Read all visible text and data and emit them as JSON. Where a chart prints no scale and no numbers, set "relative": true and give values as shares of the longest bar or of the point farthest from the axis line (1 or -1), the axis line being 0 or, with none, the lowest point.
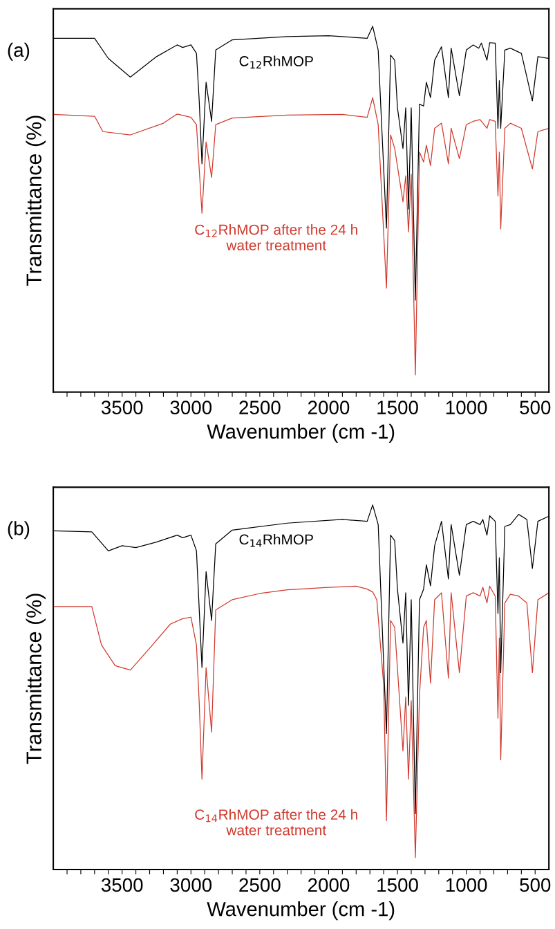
{
  "chart_data": [
    {
      "type": "line",
      "title": "(a)",
      "xlabel": "Wavenumber (cm -1)",
      "ylabel": "Transmittance (%)",
      "relative": true,
      "tick_labels": "x",
      "grid": false,
      "marker": "none",
      "line_style": "solid",
      "xlim": [
        4000,
        400
      ],
      "xticks": [
        {
          "value": 3900,
          "label": null
        },
        {
          "value": 3800,
          "label": null
        },
        {
          "value": 3700,
          "label": null
        },
        {
          "value": 3600,
          "label": null
        },
        3500,
        {
          "value": 3400,
          "label": null
        },
        {
          "value": 3300,
          "label": null
        },
        {
          "value": 3200,
          "label": null
        },
        {
          "value": 3100,
          "label": null
        },
        3000,
        {
          "value": 2900,
          "label": null
        },
        {
          "value": 2800,
          "label": null
        },
        {
          "value": 2700,
          "label": null
        },
        {
          "value": 2600,
          "label": null
        },
        2500,
        {
          "value": 2400,
          "label": null
        },
        {
          "value": 2300,
          "label": null
        },
        {
          "value": 2200,
          "label": null
        },
        {
          "value": 2100,
          "label": null
        },
        2000,
        {
          "value": 1900,
          "label": null
        },
        {
          "value": 1800,
          "label": null
        },
        {
          "value": 1700,
          "label": null
        },
        {
          "value": 1600,
          "label": null
        },
        1500,
        {
          "value": 1400,
          "label": null
        },
        {
          "value": 1300,
          "label": null
        },
        {
          "value": 1200,
          "label": null
        },
        {
          "value": 1100,
          "label": null
        },
        1000,
        {
          "value": 900,
          "label": null
        },
        {
          "value": 800,
          "label": null
        },
        {
          "value": 700,
          "label": null
        },
        {
          "value": 600,
          "label": null
        },
        500
      ],
      "series": [
        {
          "name": "C$_{12}$RhMOP",
          "color": "#000000",
          "x": [
            4000,
            3700,
            3600,
            3440,
            3250,
            3100,
            3060,
            3000,
            2960,
            2940,
            2920,
            2890,
            2850,
            2820,
            2700,
            2300,
            2000,
            1720,
            1680,
            1640,
            1580,
            1550,
            1520,
            1500,
            1460,
            1440,
            1420,
            1400,
            1370,
            1340,
            1310,
            1290,
            1260,
            1230,
            1180,
            1130,
            1110,
            1050,
            1000,
            950,
            910,
            890,
            850,
            830,
            790,
            770,
            760,
            750,
            720,
            680,
            600,
            520,
            480,
            400
          ],
          "values": [
            0.967,
            0.967,
            0.912,
            0.861,
            0.917,
            0.949,
            0.942,
            0.949,
            0.926,
            0.796,
            0.624,
            0.847,
            0.74,
            0.935,
            0.963,
            0.972,
            0.974,
            0.967,
            1.0,
            0.935,
            0.448,
            0.921,
            0.907,
            0.777,
            0.666,
            0.777,
            0.5,
            0.777,
            0.251,
            0.787,
            0.782,
            0.847,
            0.805,
            0.907,
            0.944,
            0.805,
            0.94,
            0.81,
            0.935,
            0.949,
            0.94,
            0.954,
            0.907,
            0.955,
            0.954,
            0.721,
            0.851,
            0.721,
            0.935,
            0.94,
            0.926,
            0.796,
            0.917,
            0.912
          ]
        },
        {
          "name": "C$_{12}$RhMOP after the 24 h\nwater treatment",
          "color": "#d03a2e",
          "x": [
            4000,
            3700,
            3640,
            3440,
            3200,
            3100,
            3000,
            2960,
            2920,
            2890,
            2850,
            2820,
            2700,
            2300,
            1900,
            1720,
            1680,
            1640,
            1580,
            1550,
            1520,
            1460,
            1440,
            1420,
            1400,
            1370,
            1340,
            1310,
            1290,
            1260,
            1230,
            1180,
            1130,
            1110,
            1050,
            1000,
            950,
            900,
            850,
            830,
            790,
            770,
            760,
            750,
            720,
            680,
            600,
            520,
            480,
            400
          ],
          "values": [
            0.759,
            0.754,
            0.712,
            0.703,
            0.735,
            0.76,
            0.751,
            0.731,
            0.489,
            0.684,
            0.587,
            0.731,
            0.749,
            0.757,
            0.759,
            0.751,
            0.805,
            0.731,
            0.284,
            0.703,
            0.666,
            0.52,
            0.591,
            0.438,
            0.596,
            0.047,
            0.656,
            0.629,
            0.675,
            0.619,
            0.721,
            0.735,
            0.624,
            0.721,
            0.638,
            0.731,
            0.74,
            0.745,
            0.721,
            0.745,
            0.74,
            0.536,
            0.656,
            0.446,
            0.721,
            0.735,
            0.721,
            0.61,
            0.712,
            0.721
          ]
        }
      ]
    },
    {
      "type": "line",
      "title": "(b)",
      "xlabel": "Wavenumber (cm -1)",
      "ylabel": "Transmittance (%)",
      "relative": true,
      "tick_labels": "x",
      "grid": false,
      "marker": "none",
      "line_style": "solid",
      "xlim": [
        4000,
        400
      ],
      "xticks": [
        {
          "value": 3900,
          "label": null
        },
        {
          "value": 3800,
          "label": null
        },
        {
          "value": 3700,
          "label": null
        },
        {
          "value": 3600,
          "label": null
        },
        3500,
        {
          "value": 3400,
          "label": null
        },
        {
          "value": 3300,
          "label": null
        },
        {
          "value": 3200,
          "label": null
        },
        {
          "value": 3100,
          "label": null
        },
        3000,
        {
          "value": 2900,
          "label": null
        },
        {
          "value": 2800,
          "label": null
        },
        {
          "value": 2700,
          "label": null
        },
        {
          "value": 2600,
          "label": null
        },
        2500,
        {
          "value": 2400,
          "label": null
        },
        {
          "value": 2300,
          "label": null
        },
        {
          "value": 2200,
          "label": null
        },
        {
          "value": 2100,
          "label": null
        },
        2000,
        {
          "value": 1900,
          "label": null
        },
        {
          "value": 1800,
          "label": null
        },
        {
          "value": 1700,
          "label": null
        },
        {
          "value": 1600,
          "label": null
        },
        1500,
        {
          "value": 1400,
          "label": null
        },
        {
          "value": 1300,
          "label": null
        },
        {
          "value": 1200,
          "label": null
        },
        {
          "value": 1100,
          "label": null
        },
        1000,
        {
          "value": 900,
          "label": null
        },
        {
          "value": 800,
          "label": null
        },
        {
          "value": 700,
          "label": null
        },
        {
          "value": 600,
          "label": null
        },
        500
      ],
      "series": [
        {
          "name": "C$_{14}$RhMOP",
          "color": "#000000",
          "x": [
            4000,
            3720,
            3600,
            3500,
            3400,
            3250,
            3100,
            3060,
            3000,
            2960,
            2920,
            2890,
            2850,
            2820,
            2700,
            2300,
            1900,
            1720,
            1680,
            1640,
            1580,
            1550,
            1520,
            1500,
            1460,
            1440,
            1420,
            1400,
            1370,
            1340,
            1310,
            1290,
            1260,
            1230,
            1180,
            1130,
            1110,
            1050,
            1000,
            950,
            900,
            880,
            850,
            830,
            790,
            770,
            760,
            750,
            720,
            680,
            620,
            560,
            520,
            480,
            400
          ],
          "values": [
            0.929,
            0.926,
            0.874,
            0.888,
            0.883,
            0.898,
            0.917,
            0.91,
            0.917,
            0.874,
            0.554,
            0.817,
            0.683,
            0.893,
            0.931,
            0.95,
            0.96,
            0.955,
            1.0,
            0.946,
            0.373,
            0.917,
            0.902,
            0.769,
            0.621,
            0.759,
            0.45,
            0.74,
            0.153,
            0.74,
            0.769,
            0.836,
            0.778,
            0.888,
            0.955,
            0.797,
            0.946,
            0.807,
            0.946,
            0.955,
            0.946,
            0.96,
            0.917,
            0.97,
            0.955,
            0.702,
            0.855,
            0.54,
            0.941,
            0.946,
            0.974,
            0.96,
            0.826,
            0.955,
            0.969
          ]
        },
        {
          "name": "C$_{14}$RhMOP after the 24 h\nwater treatment",
          "color": "#d03a2e",
          "x": [
            4000,
            3720,
            3650,
            3550,
            3440,
            3300,
            3150,
            3060,
            3000,
            2960,
            2940,
            2920,
            2890,
            2850,
            2820,
            2700,
            2500,
            2300,
            2000,
            1800,
            1720,
            1680,
            1650,
            1600,
            1580,
            1550,
            1520,
            1460,
            1440,
            1420,
            1400,
            1370,
            1340,
            1310,
            1290,
            1260,
            1230,
            1180,
            1130,
            1110,
            1050,
            1000,
            950,
            900,
            880,
            850,
            830,
            790,
            770,
            760,
            750,
            720,
            680,
            620,
            560,
            520,
            480,
            400
          ],
          "values": [
            0.721,
            0.721,
            0.616,
            0.559,
            0.547,
            0.607,
            0.673,
            0.688,
            0.692,
            0.616,
            0.458,
            0.248,
            0.554,
            0.377,
            0.712,
            0.74,
            0.757,
            0.767,
            0.774,
            0.777,
            0.769,
            0.761,
            0.74,
            0.506,
            0.134,
            0.683,
            0.664,
            0.325,
            0.473,
            0.248,
            0.463,
            0.033,
            0.478,
            0.664,
            0.683,
            0.511,
            0.74,
            0.759,
            0.525,
            0.759,
            0.54,
            0.75,
            0.759,
            0.75,
            0.774,
            0.731,
            0.777,
            0.75,
            0.415,
            0.635,
            0.301,
            0.731,
            0.755,
            0.75,
            0.731,
            0.54,
            0.74,
            0.759
          ]
        }
      ]
    }
  ]
}
